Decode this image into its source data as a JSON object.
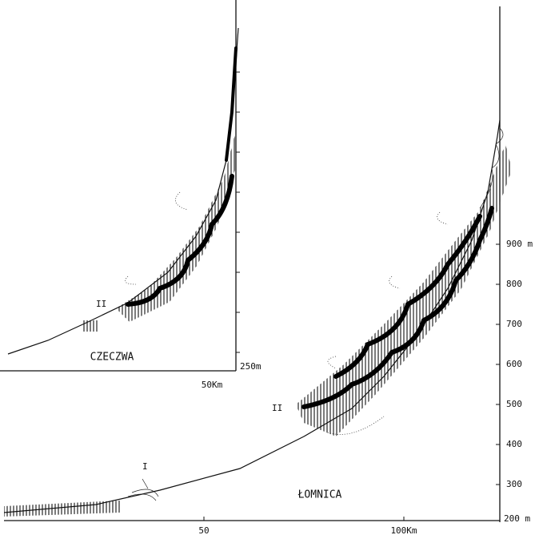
{
  "main_profile": {
    "name": "ŁOMNICA",
    "terrace_labels": [
      "I",
      "II"
    ],
    "height_labels": [
      "900 m",
      "800",
      "700",
      "600",
      "500",
      "400",
      "300",
      "200 m"
    ],
    "distance_labels": [
      "50",
      "100Km"
    ]
  },
  "inset_profile": {
    "name": "CZECZWA",
    "terrace_labels": [
      "II"
    ],
    "height_labels": [
      "250m"
    ],
    "distance_labels": [
      "50Km"
    ]
  }
}
